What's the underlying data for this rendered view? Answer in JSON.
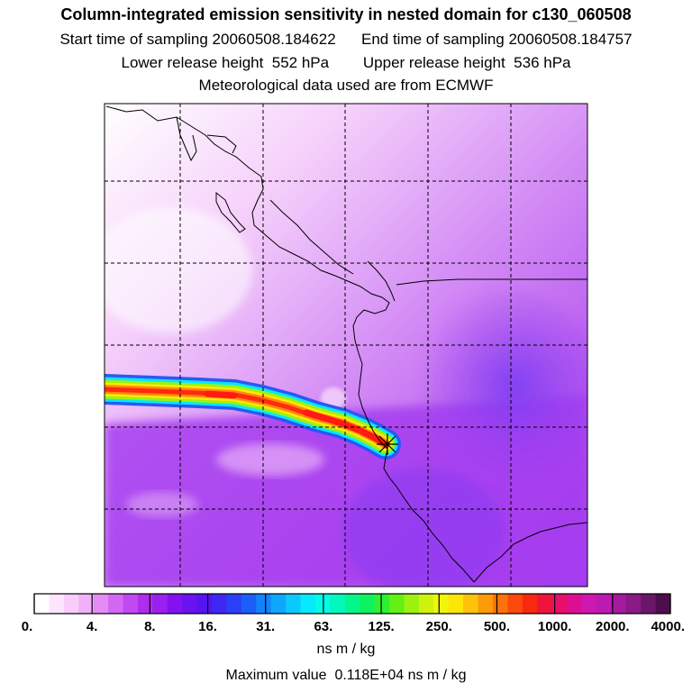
{
  "header": {
    "title": "Column-integrated emission sensitivity in nested domain for c130_060508",
    "sampling_line": "Start time of sampling 20060508.184622      End time of sampling 20060508.184757",
    "release_line": "Lower release height  552 hPa        Upper release height  536 hPa",
    "met_line": "Meteorological data used are from ECMWF"
  },
  "colorbar": {
    "labels": [
      "0.",
      "4.",
      "8.",
      "16.",
      "31.",
      "63.",
      "125.",
      "250.",
      "500.",
      "1000.",
      "2000.",
      "4000."
    ],
    "colors": [
      "#ffffff",
      "#fde6fd",
      "#f9cdfb",
      "#f2b0f8",
      "#e48bf5",
      "#d468f3",
      "#c248f1",
      "#b02cee",
      "#9b1fee",
      "#8312ef",
      "#6a12ef",
      "#5514f1",
      "#3f28f4",
      "#2b40f6",
      "#1c5ff8",
      "#1383fb",
      "#0ea7fc",
      "#0acafd",
      "#07e9fd",
      "#03fbe7",
      "#02f8bc",
      "#05f58d",
      "#0ef25e",
      "#2ff02e",
      "#64f014",
      "#9df10f",
      "#cdf30d",
      "#f0f50b",
      "#fde50a",
      "#fdc20a",
      "#fd9b0a",
      "#fd730b",
      "#fd4a0c",
      "#f9290f",
      "#f0143a",
      "#e80f6a",
      "#dc0f92",
      "#cf18b0",
      "#bd1ab5",
      "#a41a9f",
      "#891a86",
      "#6c166a",
      "#4e0e4e"
    ],
    "units": "ns m / kg"
  },
  "max_value_text": "Maximum value  0.118E+04 ns m / kg",
  "map": {
    "release_marker": "release-point-star-icon",
    "grid": true,
    "plume_colors": [
      "#ff2a10",
      "#ff8a0b",
      "#ffe70a",
      "#9ff10f",
      "#08e8fb",
      "#2a58f6"
    ]
  }
}
